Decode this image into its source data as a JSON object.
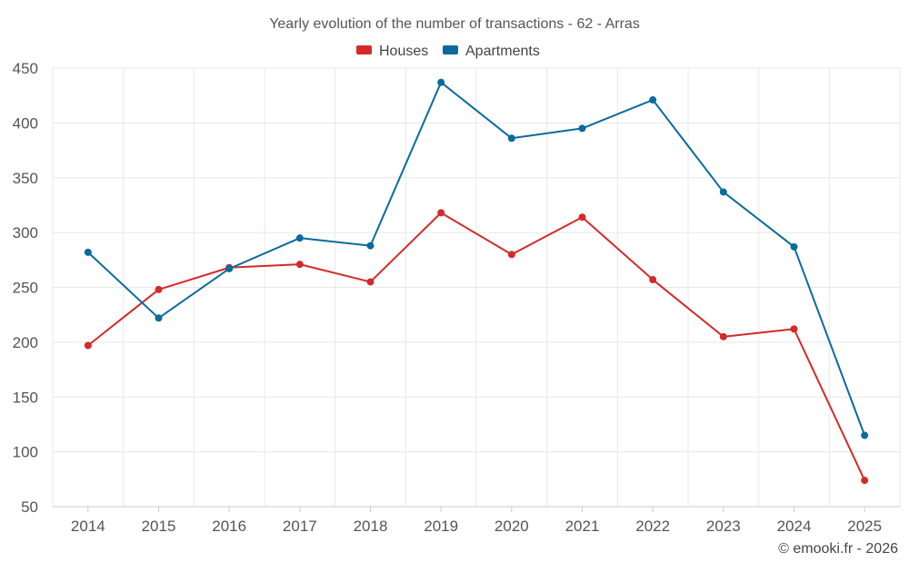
{
  "chart_data": {
    "type": "line",
    "title": "Yearly evolution of the number of transactions - 62 - Arras",
    "categories": [
      "2014",
      "2015",
      "2016",
      "2017",
      "2018",
      "2019",
      "2020",
      "2021",
      "2022",
      "2023",
      "2024",
      "2025"
    ],
    "series": [
      {
        "name": "Houses",
        "color": "#d42a2a",
        "values": [
          197,
          248,
          268,
          271,
          255,
          318,
          280,
          314,
          257,
          205,
          212,
          74
        ]
      },
      {
        "name": "Apartments",
        "color": "#0a6b9c",
        "values": [
          282,
          222,
          267,
          295,
          288,
          437,
          386,
          395,
          421,
          337,
          287,
          115
        ]
      }
    ],
    "ylim": [
      50,
      450
    ],
    "yticks": [
      50,
      100,
      150,
      200,
      250,
      300,
      350,
      400,
      450
    ],
    "grid": true,
    "legend_position": "top-center",
    "credit": "© emooki.fr - 2026"
  }
}
